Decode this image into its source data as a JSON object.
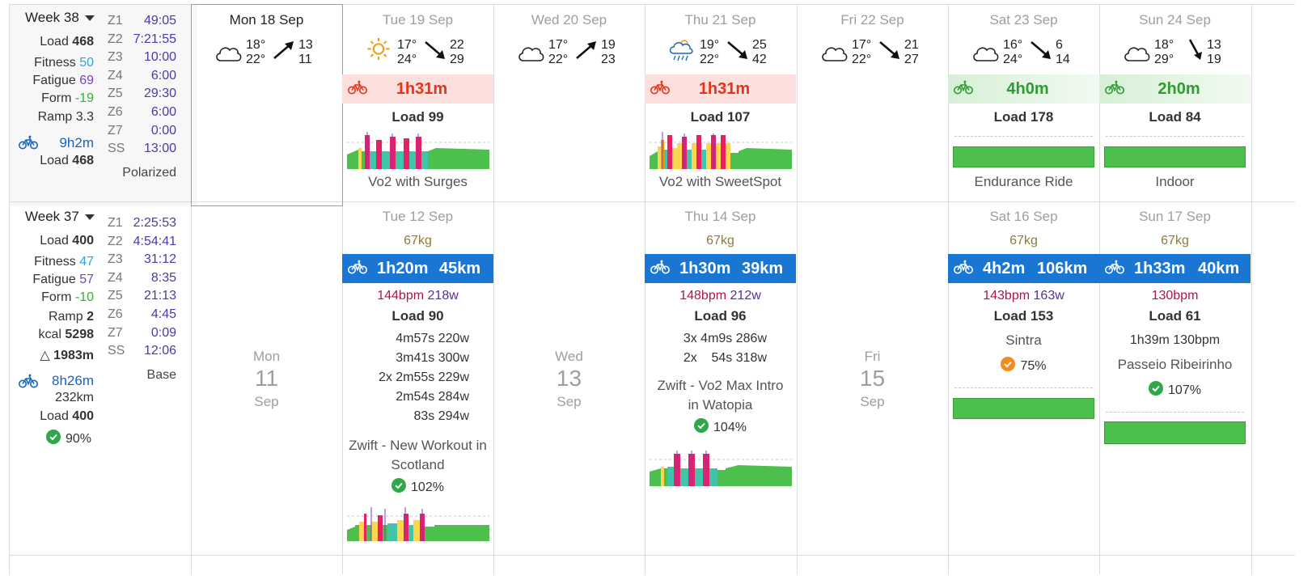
{
  "colors": {
    "fitness": "#29a6e0",
    "fatigue": "#7b3fc9",
    "form_neg": "#2db52d",
    "duration_blue": "#1565c0",
    "actual_band": "#1976d2",
    "planned_red": "#e6331a",
    "planned_green": "#2e9c2e",
    "hr": "#b0144c",
    "power": "#5b2c9e"
  },
  "week38": {
    "title": "Week 38",
    "load_label": "Load",
    "load": "468",
    "fitness_label": "Fitness",
    "fitness": "50",
    "fatigue_label": "Fatigue",
    "fatigue": "69",
    "form_label": "Form",
    "form": "-19",
    "ramp_label": "Ramp",
    "ramp": "3.3",
    "duration": "9h2m",
    "total_load_label": "Load",
    "total_load": "468",
    "zones": [
      {
        "z": "Z1",
        "v": "49:05"
      },
      {
        "z": "Z2",
        "v": "7:21:55"
      },
      {
        "z": "Z3",
        "v": "10:00"
      },
      {
        "z": "Z4",
        "v": "6:00"
      },
      {
        "z": "Z5",
        "v": "29:30"
      },
      {
        "z": "Z6",
        "v": "6:00"
      },
      {
        "z": "Z7",
        "v": "0:00"
      },
      {
        "z": "SS",
        "v": "13:00"
      }
    ],
    "distribution": "Polarized",
    "days": [
      {
        "date": "Mon 18 Sep",
        "t1": "18°",
        "t2": "22°",
        "w1": "13",
        "w2": "11",
        "icon": "cloud-icon"
      },
      {
        "date": "Tue 19 Sep",
        "t1": "17°",
        "t2": "24°",
        "w1": "22",
        "w2": "29",
        "icon": "sun-icon",
        "duration": "1h31m",
        "load": "Load 99",
        "name": "Vo2 with Surges"
      },
      {
        "date": "Wed 20 Sep",
        "t1": "17°",
        "t2": "22°",
        "w1": "19",
        "w2": "23",
        "icon": "cloud-icon"
      },
      {
        "date": "Thu 21 Sep",
        "t1": "19°",
        "t2": "22°",
        "w1": "25",
        "w2": "42",
        "icon": "rain-cloud-icon",
        "duration": "1h31m",
        "load": "Load 107",
        "name": "Vo2 with SweetSpot"
      },
      {
        "date": "Fri 22 Sep",
        "t1": "17°",
        "t2": "22°",
        "w1": "21",
        "w2": "27",
        "icon": "cloud-icon"
      },
      {
        "date": "Sat 23 Sep",
        "t1": "16°",
        "t2": "24°",
        "w1": "6",
        "w2": "14",
        "icon": "cloud-icon",
        "duration": "4h0m",
        "load": "Load 178",
        "name": "Endurance Ride"
      },
      {
        "date": "Sun 24 Sep",
        "t1": "18°",
        "t2": "29°",
        "w1": "13",
        "w2": "19",
        "icon": "cloud-icon",
        "duration": "2h0m",
        "load": "Load 84",
        "name": "Indoor"
      }
    ]
  },
  "week37": {
    "title": "Week 37",
    "load_label": "Load",
    "load": "400",
    "fitness_label": "Fitness",
    "fitness": "47",
    "fatigue_label": "Fatigue",
    "fatigue": "57",
    "form_label": "Form",
    "form": "-10",
    "ramp_label": "Ramp",
    "ramp": "2",
    "kcal_label": "kcal",
    "kcal": "5298",
    "elev_label": "△",
    "elevation": "1983m",
    "duration": "8h26m",
    "distance": "232km",
    "total_load_label": "Load",
    "total_load": "400",
    "compliance": "90%",
    "zones": [
      {
        "z": "Z1",
        "v": "2:25:53"
      },
      {
        "z": "Z2",
        "v": "4:54:41"
      },
      {
        "z": "Z3",
        "v": "31:12"
      },
      {
        "z": "Z4",
        "v": "8:35"
      },
      {
        "z": "Z5",
        "v": "21:13"
      },
      {
        "z": "Z6",
        "v": "4:45"
      },
      {
        "z": "Z7",
        "v": "0:09"
      },
      {
        "z": "SS",
        "v": "12:06"
      }
    ],
    "distribution": "Base",
    "mon": {
      "dow": "Mon",
      "day": "11",
      "month": "Sep"
    },
    "wed": {
      "dow": "Wed",
      "day": "13",
      "month": "Sep"
    },
    "fri": {
      "dow": "Fri",
      "day": "15",
      "month": "Sep"
    },
    "tue": {
      "date": "Tue 12 Sep",
      "weight": "67kg",
      "duration": "1h20m",
      "distance": "45km",
      "hr": "144bpm",
      "power": "218w",
      "load": "Load 90",
      "intervals": [
        "4m57s 220w",
        "3m41s 300w",
        "2x 2m55s 229w",
        "2m54s 284w",
        "83s 294w"
      ],
      "name1": "Zwift - New Workout in",
      "name2": "Scotland",
      "compliance": "102%"
    },
    "thu": {
      "date": "Thu 14 Sep",
      "weight": "67kg",
      "duration": "1h30m",
      "distance": "39km",
      "hr": "148bpm",
      "power": "212w",
      "load": "Load 96",
      "intervals": [
        "3x 4m9s 286w",
        "2x    54s 318w"
      ],
      "name1": "Zwift - Vo2 Max Intro",
      "name2": "in Watopia",
      "compliance": "104%"
    },
    "sat": {
      "date": "Sat 16 Sep",
      "weight": "67kg",
      "duration": "4h2m",
      "distance": "106km",
      "hr": "143bpm",
      "power": "163w",
      "load": "Load 153",
      "name": "Sintra",
      "compliance": "75%"
    },
    "sun": {
      "date": "Sun 17 Sep",
      "weight": "67kg",
      "duration": "1h33m",
      "distance": "40km",
      "hr": "130bpm",
      "load": "Load 61",
      "sub": "1h39m 130bpm",
      "name": "Passeio Ribeirinho",
      "compliance": "107%"
    }
  }
}
